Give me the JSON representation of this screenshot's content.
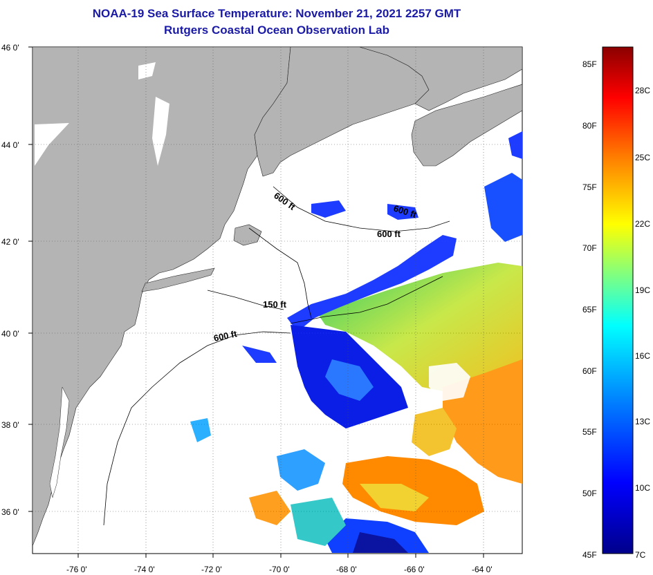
{
  "header": {
    "title": "NOAA-19 Sea Surface Temperature:  November 21, 2021 2257 GMT",
    "subtitle": "Rutgers Coastal Ocean Observation Lab"
  },
  "map": {
    "lat_labels": [
      "46 0'",
      "44 0'",
      "42 0'",
      "40 0'",
      "38 0'",
      "36 0'"
    ],
    "lon_labels": [
      "-76 0'",
      "-74 0'",
      "-72 0'",
      "-70 0'",
      "-68 0'",
      "-66 0'",
      "-64 0'"
    ],
    "lat_range": [
      35,
      46
    ],
    "lon_range": [
      -77,
      -62.5
    ],
    "contour_labels": [
      "600 ft",
      "600 ft",
      "600 ft",
      "150 ft",
      "600 ft"
    ],
    "colors": {
      "land": "#b4b4b4",
      "cloud": "#ffffff",
      "title": "#1a1aa6"
    }
  },
  "colorbar": {
    "fahrenheit_labels": [
      "85F",
      "80F",
      "75F",
      "70F",
      "65F",
      "60F",
      "55F",
      "50F",
      "45F"
    ],
    "celsius_labels": [
      "28C",
      "25C",
      "22C",
      "19C",
      "16C",
      "13C",
      "10C",
      "7C"
    ],
    "range_f": [
      45,
      86
    ],
    "colors": [
      "#00008b",
      "#0000ff",
      "#0080ff",
      "#00ffff",
      "#80ff80",
      "#ffff00",
      "#ff8000",
      "#ff0000",
      "#8b0000"
    ]
  }
}
